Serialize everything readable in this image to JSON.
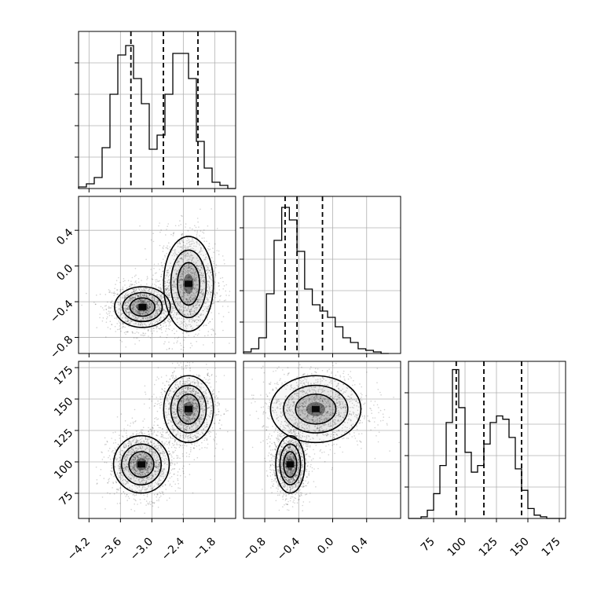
{
  "chart_data": {
    "type": "corner",
    "panels": [
      {
        "id": "hist-p1",
        "type": "histogram",
        "xlim": [
          -4.4,
          -1.4
        ],
        "edges": [
          -4.4,
          -4.25,
          -4.1,
          -3.95,
          -3.8,
          -3.65,
          -3.5,
          -3.35,
          -3.2,
          -3.05,
          -2.9,
          -2.75,
          -2.6,
          -2.45,
          -2.3,
          -2.15,
          -2.0,
          -1.85,
          -1.7,
          -1.55,
          -1.4
        ],
        "counts": [
          1,
          3,
          7,
          26,
          60,
          85,
          91,
          70,
          54,
          25,
          34,
          60,
          86,
          86,
          70,
          30,
          13,
          4,
          2,
          0
        ],
        "ymax": 100,
        "quantiles": [
          -3.4,
          -2.78,
          -2.12
        ]
      },
      {
        "id": "hist-p2",
        "type": "histogram",
        "xlim": [
          -1.05,
          0.8
        ],
        "edges": [
          -1.05,
          -0.96,
          -0.87,
          -0.78,
          -0.69,
          -0.6,
          -0.51,
          -0.42,
          -0.33,
          -0.24,
          -0.15,
          -0.06,
          0.03,
          0.12,
          0.21,
          0.3,
          0.39,
          0.48,
          0.57,
          0.66
        ],
        "counts": [
          1,
          3,
          10,
          38,
          72,
          93,
          85,
          65,
          41,
          31,
          27,
          23,
          17,
          10,
          7,
          3,
          2,
          1,
          0
        ],
        "ymax": 100,
        "quantiles": [
          -0.56,
          -0.42,
          -0.12
        ]
      },
      {
        "id": "hist-p3",
        "type": "histogram",
        "xlim": [
          55,
          180
        ],
        "edges": [
          55,
          60,
          65,
          70,
          75,
          80,
          85,
          90,
          95,
          100,
          105,
          110,
          115,
          120,
          125,
          130,
          135,
          140,
          145,
          150,
          155,
          160,
          165,
          170,
          175,
          180
        ],
        "counts": [
          0,
          0,
          1,
          5,
          15,
          32,
          58,
          90,
          67,
          40,
          28,
          32,
          45,
          58,
          62,
          60,
          49,
          30,
          17,
          6,
          2,
          1,
          0,
          0,
          0
        ],
        "ymax": 95,
        "quantiles": [
          93,
          115,
          145
        ]
      },
      {
        "id": "density-p1-p2",
        "type": "2d-density",
        "xlim": [
          -4.4,
          -1.4
        ],
        "ylim": [
          -0.98,
          0.78
        ],
        "clusters": [
          {
            "center": [
              -3.18,
              -0.46
            ],
            "spread": [
              0.28,
              0.12
            ]
          },
          {
            "center": [
              -2.3,
              -0.2
            ],
            "spread": [
              0.25,
              0.28
            ]
          }
        ]
      },
      {
        "id": "density-p1-p3",
        "type": "2d-density",
        "xlim": [
          -4.4,
          -1.4
        ],
        "ylim": [
          55,
          180
        ],
        "clusters": [
          {
            "center": [
              -3.2,
              98
            ],
            "spread": [
              0.28,
              12
            ]
          },
          {
            "center": [
              -2.3,
              142
            ],
            "spread": [
              0.25,
              14
            ]
          }
        ]
      },
      {
        "id": "density-p2-p3",
        "type": "2d-density",
        "xlim": [
          -1.05,
          0.8
        ],
        "ylim": [
          55,
          180
        ],
        "clusters": [
          {
            "center": [
              -0.5,
              98
            ],
            "spread": [
              0.09,
              12
            ]
          },
          {
            "center": [
              -0.2,
              142
            ],
            "spread": [
              0.28,
              14
            ]
          }
        ]
      }
    ],
    "axes": {
      "col1_x_ticks": [
        "−4.2",
        "−3.6",
        "−3.0",
        "−2.4",
        "−1.8"
      ],
      "col1_x_tick_values": [
        -4.2,
        -3.6,
        -3.0,
        -2.4,
        -1.8
      ],
      "col2_x_ticks": [
        "−0.8",
        "−0.4",
        "0.0",
        "0.4"
      ],
      "col2_x_tick_values": [
        -0.8,
        -0.4,
        0.0,
        0.4
      ],
      "col3_x_ticks": [
        "75",
        "100",
        "125",
        "150",
        "175"
      ],
      "col3_x_tick_values": [
        75,
        100,
        125,
        150,
        175
      ],
      "row2_y_ticks": [
        "0.4",
        "0.0",
        "−0.4",
        "−0.8"
      ],
      "row2_y_tick_values": [
        0.4,
        0.0,
        -0.4,
        -0.8
      ],
      "row3_y_ticks": [
        "175",
        "150",
        "125",
        "100",
        "75"
      ],
      "row3_y_tick_values": [
        175,
        150,
        125,
        100,
        75
      ]
    },
    "grid": true,
    "colors": {
      "line": "#000000",
      "grid": "#b0b0b0",
      "scatter": "#000000"
    }
  }
}
